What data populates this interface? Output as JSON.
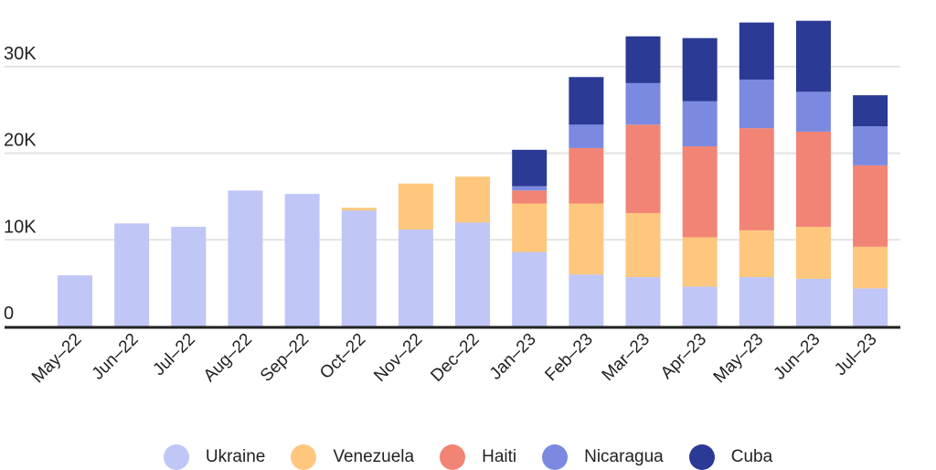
{
  "chart_data": {
    "type": "bar",
    "stacked": true,
    "categories": [
      "May–22",
      "Jun–22",
      "Jul–22",
      "Aug–22",
      "Sep–22",
      "Oct–22",
      "Nov–22",
      "Dec–22",
      "Jan–23",
      "Feb–23",
      "Mar–23",
      "Apr–23",
      "May–23",
      "Jun–23",
      "Jul–23"
    ],
    "series": [
      {
        "name": "Ukraine",
        "color": "#c0c6f6",
        "values": [
          5.9,
          11.9,
          11.5,
          15.7,
          15.3,
          13.4,
          11.2,
          12.0,
          8.6,
          6.0,
          5.7,
          4.6,
          5.7,
          5.5,
          4.4
        ]
      },
      {
        "name": "Venezuela",
        "color": "#fec77d",
        "values": [
          0,
          0,
          0,
          0,
          0,
          0.3,
          5.3,
          5.3,
          5.6,
          8.2,
          7.4,
          5.7,
          5.4,
          6.0,
          4.8
        ]
      },
      {
        "name": "Haiti",
        "color": "#f28475",
        "values": [
          0,
          0,
          0,
          0,
          0,
          0,
          0,
          0,
          1.5,
          6.4,
          10.2,
          10.5,
          11.8,
          11.0,
          9.4
        ]
      },
      {
        "name": "Nicaragua",
        "color": "#7b8ae0",
        "values": [
          0,
          0,
          0,
          0,
          0,
          0,
          0,
          0,
          0.5,
          2.7,
          4.8,
          5.2,
          5.6,
          4.6,
          4.5
        ]
      },
      {
        "name": "Cuba",
        "color": "#2b3a94",
        "values": [
          0,
          0,
          0,
          0,
          0,
          0,
          0,
          0,
          4.2,
          5.5,
          5.4,
          7.3,
          6.6,
          8.2,
          3.6
        ]
      }
    ],
    "value_unit": "thousands",
    "ylim": [
      0,
      36
    ],
    "yticks": [
      0,
      10,
      20,
      30
    ],
    "ytick_labels": [
      "0",
      "10K",
      "20K",
      "30K"
    ],
    "grid": true,
    "legend_position": "bottom",
    "title": "",
    "xlabel": "",
    "ylabel": ""
  }
}
